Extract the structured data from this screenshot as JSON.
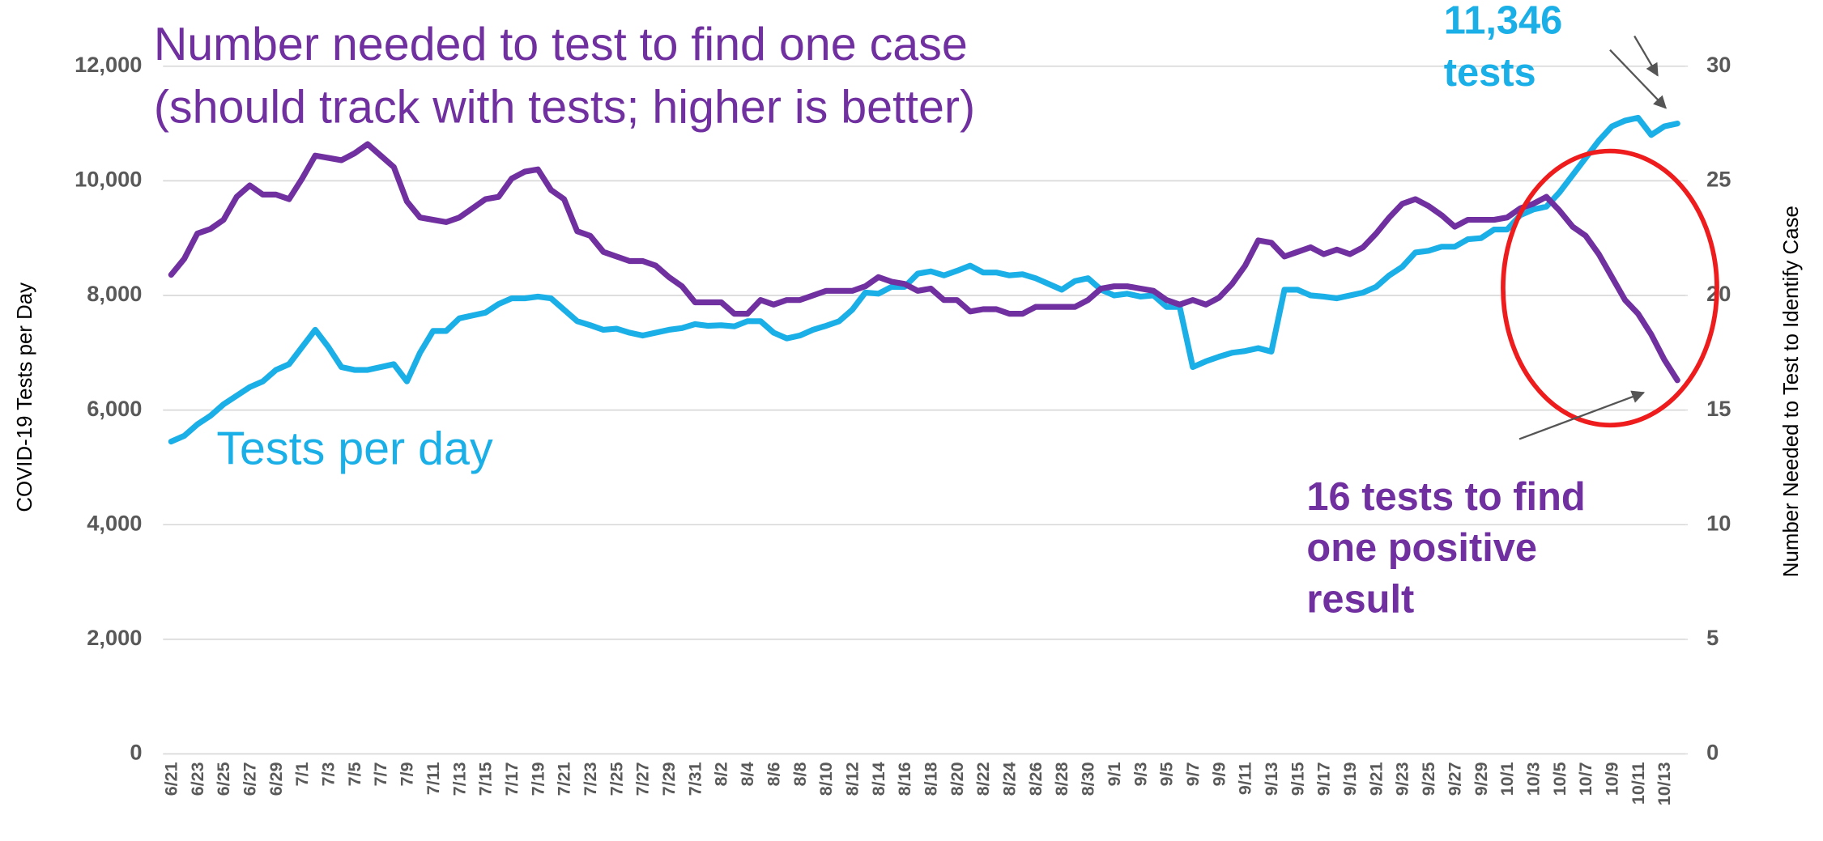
{
  "chart_data": {
    "type": "line",
    "title": [
      "Number needed to test to find one case",
      "(should track with tests; higher is better)"
    ],
    "annotations": [
      [
        "Tests per day"
      ],
      [
        "11,346",
        "tests"
      ],
      [
        "16 tests to find",
        "one positive",
        "result"
      ]
    ],
    "ylabel": "COVID-19 Tests per Day",
    "y2label": "Number Needed to Test to Identify Case",
    "categories": [
      "6/21",
      null,
      "6/23",
      null,
      "6/25",
      null,
      "6/27",
      null,
      "6/29",
      null,
      "7/1",
      null,
      "7/3",
      null,
      "7/5",
      null,
      "7/7",
      null,
      "7/9",
      null,
      "7/11",
      null,
      "7/13",
      null,
      "7/15",
      null,
      "7/17",
      null,
      "7/19",
      null,
      "7/21",
      null,
      "7/23",
      null,
      "7/25",
      null,
      "7/27",
      null,
      "7/29",
      null,
      "7/31",
      null,
      "8/2",
      null,
      "8/4",
      null,
      "8/6",
      null,
      "8/8",
      null,
      "8/10",
      null,
      "8/12",
      null,
      "8/14",
      null,
      "8/16",
      null,
      "8/18",
      null,
      "8/20",
      null,
      "8/22",
      null,
      "8/24",
      null,
      "8/26",
      null,
      "8/28",
      null,
      "8/30",
      null,
      "9/1",
      null,
      "9/3",
      null,
      "9/5",
      null,
      "9/7",
      null,
      "9/9",
      null,
      "9/11",
      null,
      "9/13",
      null,
      "9/15",
      null,
      "9/17",
      null,
      "9/19",
      null,
      "9/21",
      null,
      "9/23",
      null,
      "9/25",
      null,
      "9/27",
      null,
      "9/29",
      null,
      "10/1",
      null,
      "10/3",
      null,
      "10/5",
      null,
      "10/7",
      null,
      "10/9",
      null,
      "10/11",
      null,
      "10/13",
      null
    ],
    "series": [
      {
        "name": "Tests per day",
        "color": "#1aafe6",
        "axis": "y",
        "values": [
          5450,
          5550,
          5750,
          5900,
          6100,
          6250,
          6400,
          6500,
          6700,
          6800,
          7100,
          7400,
          7100,
          6750,
          6700,
          6700,
          6750,
          6800,
          6500,
          7000,
          7380,
          7380,
          7600,
          7650,
          7700,
          7850,
          7950,
          7950,
          7980,
          7950,
          7750,
          7550,
          7480,
          7400,
          7420,
          7350,
          7300,
          7350,
          7400,
          7430,
          7500,
          7470,
          7480,
          7460,
          7550,
          7550,
          7350,
          7250,
          7300,
          7400,
          7470,
          7550,
          7750,
          8050,
          8030,
          8150,
          8150,
          8380,
          8420,
          8350,
          8430,
          8520,
          8400,
          8400,
          8350,
          8370,
          8300,
          8200,
          8100,
          8250,
          8300,
          8100,
          8000,
          8030,
          7980,
          8000,
          7800,
          7800,
          6750,
          6850,
          6930,
          7000,
          7030,
          7080,
          7020,
          8100,
          8100,
          8000,
          7980,
          7950,
          8000,
          8050,
          8150,
          8350,
          8500,
          8750,
          8780,
          8850,
          8850,
          8980,
          9000,
          9150,
          9150,
          9400,
          9500,
          9550,
          9800,
          10100,
          10400,
          10700,
          10950,
          11050,
          11100,
          10800,
          10950,
          11000
        ]
      },
      {
        "name": "Number needed to test to find one case",
        "color": "#7030a0",
        "axis": "y2",
        "values": [
          20.9,
          21.6,
          22.7,
          22.9,
          23.3,
          24.3,
          24.8,
          24.4,
          24.4,
          24.2,
          25.1,
          26.1,
          26.0,
          25.9,
          26.2,
          26.6,
          26.1,
          25.6,
          24.1,
          23.4,
          23.3,
          23.2,
          23.4,
          23.8,
          24.2,
          24.3,
          25.1,
          25.4,
          25.5,
          24.6,
          24.2,
          22.8,
          22.6,
          21.9,
          21.7,
          21.5,
          21.5,
          21.3,
          20.8,
          20.4,
          19.7,
          19.7,
          19.7,
          19.2,
          19.2,
          19.8,
          19.6,
          19.8,
          19.8,
          20.0,
          20.2,
          20.2,
          20.2,
          20.4,
          20.8,
          20.6,
          20.5,
          20.2,
          20.3,
          19.8,
          19.8,
          19.3,
          19.4,
          19.4,
          19.2,
          19.2,
          19.5,
          19.5,
          19.5,
          19.5,
          19.8,
          20.3,
          20.4,
          20.4,
          20.3,
          20.2,
          19.8,
          19.6,
          19.8,
          19.6,
          19.9,
          20.5,
          21.3,
          22.4,
          22.3,
          21.7,
          21.9,
          22.1,
          21.8,
          22.0,
          21.8,
          22.1,
          22.7,
          23.4,
          24.0,
          24.2,
          23.9,
          23.5,
          23.0,
          23.3,
          23.3,
          23.3,
          23.4,
          23.8,
          24.0,
          24.3,
          23.7,
          23.0,
          22.6,
          21.8,
          20.8,
          19.8,
          19.2,
          18.3,
          17.2,
          16.3
        ]
      }
    ],
    "ylim": [
      0,
      12000
    ],
    "yticks": [
      0,
      {
        "value": 2000,
        "label": "2,000"
      },
      {
        "value": 4000,
        "label": "4,000"
      },
      {
        "value": 6000,
        "label": "6,000"
      },
      {
        "value": 8000,
        "label": "8,000"
      },
      {
        "value": 10000,
        "label": "10,000"
      },
      {
        "value": 12000,
        "label": "12,000"
      }
    ],
    "y2lim": [
      0,
      30
    ],
    "y2ticks": [
      0,
      5,
      10,
      15,
      20,
      25,
      30
    ],
    "grid": true
  }
}
